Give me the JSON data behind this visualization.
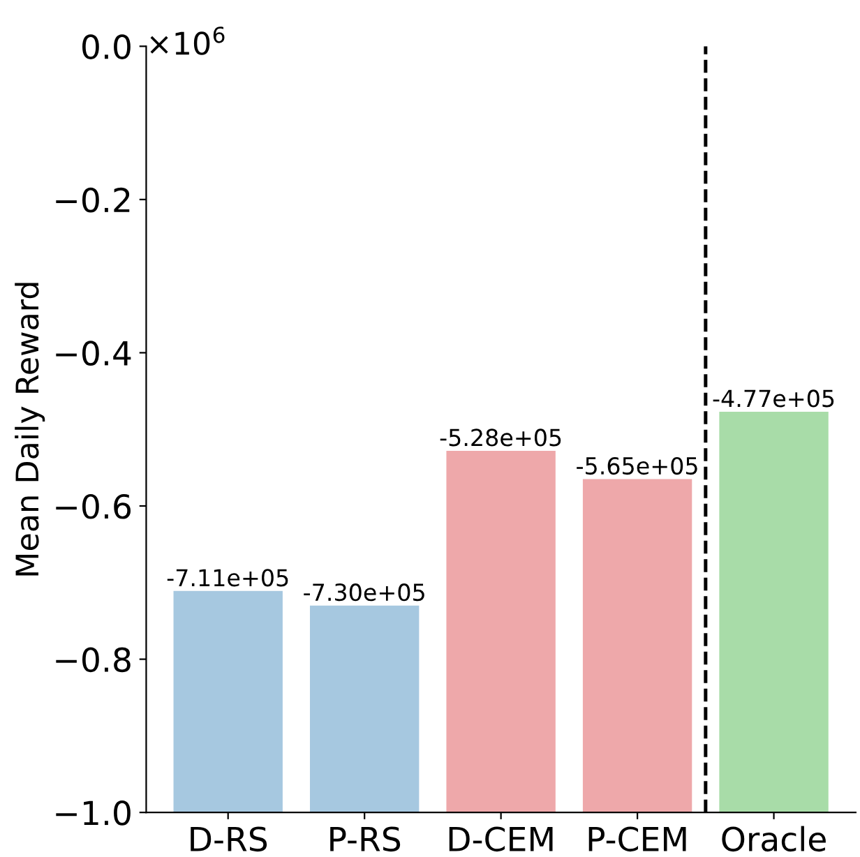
{
  "chart_data": {
    "type": "bar",
    "ylabel": "Mean Daily Reward",
    "categories": [
      "D-RS",
      "P-RS",
      "D-CEM",
      "P-CEM",
      "Oracle"
    ],
    "base": [
      -1.0,
      -1.0,
      -1.0,
      -1.0,
      -1.0
    ],
    "values": [
      0.289,
      0.27,
      0.472,
      0.435,
      0.523
    ],
    "colors": [
      "#a6c8e0",
      "#a6c8e0",
      "#eea8aa",
      "#eea8aa",
      "#a8dca8"
    ],
    "ylim": [
      -1.0,
      0
    ],
    "yticks": [
      {
        "value": -1.0,
        "label": "−1.0"
      },
      {
        "value": -0.8,
        "label": "−0.8"
      },
      {
        "value": -0.6,
        "label": "−0.6"
      },
      {
        "value": -0.4,
        "label": "−0.4"
      },
      {
        "value": -0.2,
        "label": "−0.2"
      },
      {
        "value": 0,
        "label": "0.0"
      }
    ],
    "annotations": [
      "×10$^{6}$",
      {
        "text": "-7.11e+05",
        "x": "D-RS",
        "y": -0.711
      },
      {
        "text": "-7.30e+05",
        "x": "P-RS",
        "y": -0.73
      },
      {
        "text": "-5.28e+05",
        "x": "D-CEM",
        "y": -0.528
      },
      {
        "text": "-5.65e+05",
        "x": "P-CEM",
        "y": -0.565
      },
      {
        "text": "-4.77e+05",
        "x": "Oracle",
        "y": -0.477
      }
    ],
    "grid": false,
    "legend": false
  }
}
